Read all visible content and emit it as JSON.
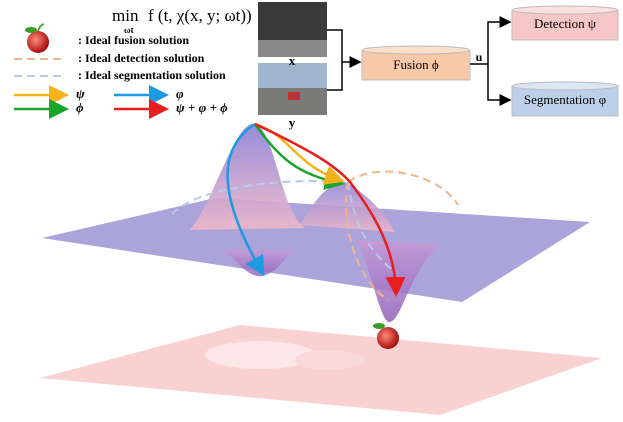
{
  "formula": {
    "operator": "min",
    "subscript": "ωt",
    "body": "f (t, χ(x, y; ωt))"
  },
  "legend": {
    "solutions": [
      ": Ideal fusion solution",
      ": Ideal detection solution",
      ": Ideal segmentation solution"
    ],
    "paths": [
      {
        "label": "ψ",
        "color": "#f5b21b"
      },
      {
        "label": "φ",
        "color": "#1e9be0"
      },
      {
        "label": "ϕ",
        "color": "#1aa52a"
      },
      {
        "label": "ψ + φ + ϕ",
        "color": "#e81d1d"
      }
    ]
  },
  "inputs": [
    "x",
    "y"
  ],
  "nodes": {
    "fusion": "Fusion ϕ",
    "edge": "u",
    "detection": "Detection ψ",
    "segmentation": "Segmentation φ"
  }
}
